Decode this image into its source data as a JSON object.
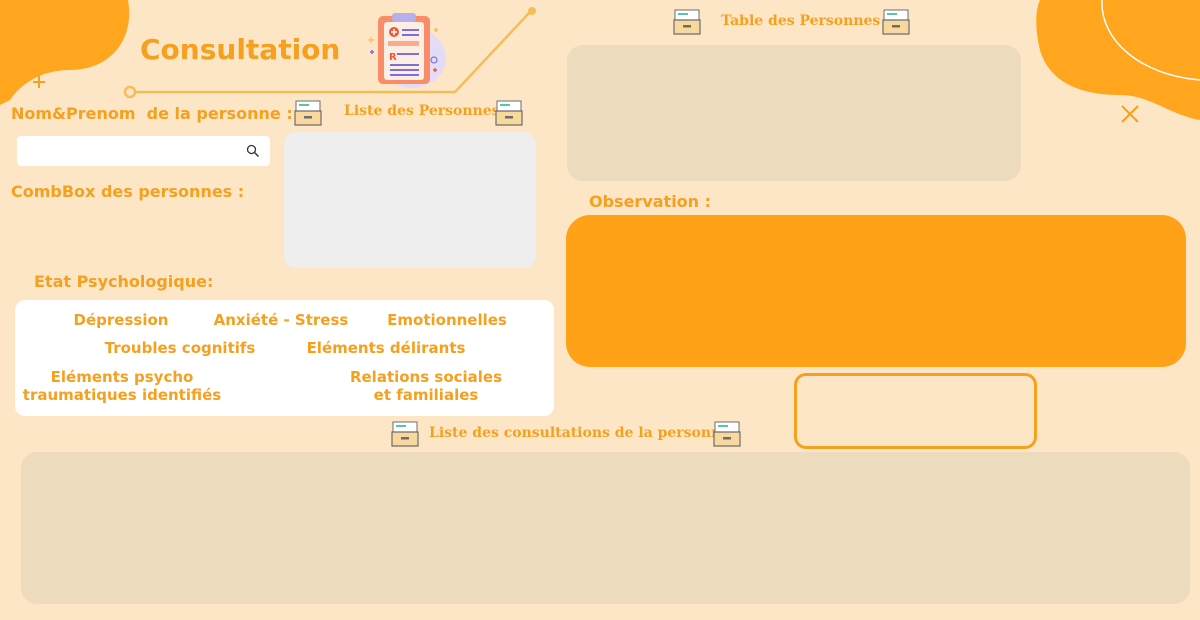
{
  "header": {
    "title": "Consultation"
  },
  "search": {
    "label": "Nom&Prenom  de la personne :",
    "value": "",
    "placeholder": ""
  },
  "combo": {
    "label": "CombBox des personnes :"
  },
  "list_personnes": {
    "title": "Liste des Personnes"
  },
  "table_personnes": {
    "title": "Table des Personnes"
  },
  "observation": {
    "label": "Observation :"
  },
  "etat": {
    "label": "Etat Psychologique:",
    "options": {
      "depression": "Dépression",
      "anxiete": "Anxiété - Stress",
      "emotionnelles": "Emotionnelles",
      "troubles": "Troubles cognitifs",
      "delirants": "Eléments délirants",
      "trauma_l1": "Eléments psycho",
      "trauma_l2": "traumatiques identifiés",
      "relations_l1": "Relations sociales",
      "relations_l2": "et familiales"
    }
  },
  "consultations": {
    "title": "Liste des consultations de la personne"
  },
  "colors": {
    "accent": "#f5a01f",
    "observation": "#ffa217",
    "background": "#fde6c6"
  },
  "icons": {
    "drawer": "file-drawer-icon",
    "clipboard": "medical-clipboard-icon",
    "close": "close-icon",
    "search": "search-icon"
  }
}
